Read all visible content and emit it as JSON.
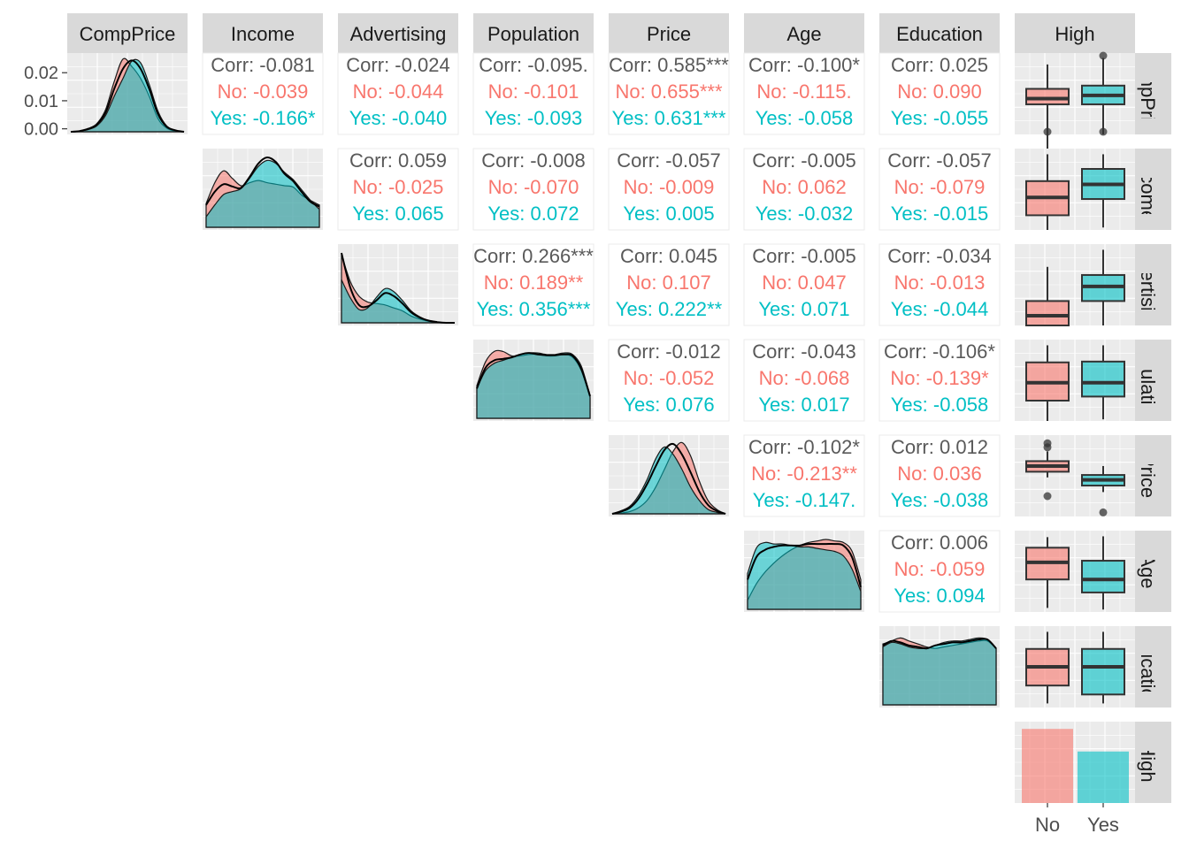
{
  "chart_data": {
    "type": "pairs",
    "variables": [
      "CompPrice",
      "Income",
      "Advertising",
      "Population",
      "Price",
      "Age",
      "Education",
      "High"
    ],
    "group_variable": "High",
    "groups": [
      "No",
      "Yes"
    ],
    "colors": {
      "No": "#F8766D",
      "Yes": "#00BFC4",
      "overall": "#555555",
      "panel_bg": "#EBEBEB",
      "strip_bg": "#D9D9D9"
    },
    "grid": true,
    "diag_y_axis": {
      "variable": "CompPrice",
      "ticks": [
        "0.00",
        "0.01",
        "0.02"
      ],
      "tick_values": [
        0,
        0.01,
        0.02
      ],
      "ylim": [
        -0.002,
        0.027
      ]
    },
    "correlations": [
      {
        "row": "CompPrice",
        "col": "Income",
        "corr": "Corr: -0.081",
        "no": "No: -0.039",
        "yes": "Yes: -0.166*"
      },
      {
        "row": "CompPrice",
        "col": "Advertising",
        "corr": "Corr: -0.024",
        "no": "No: -0.044",
        "yes": "Yes: -0.040"
      },
      {
        "row": "CompPrice",
        "col": "Population",
        "corr": "Corr: -0.095.",
        "no": "No: -0.101",
        "yes": "Yes: -0.093"
      },
      {
        "row": "CompPrice",
        "col": "Price",
        "corr": "Corr: 0.585***",
        "no": "No: 0.655***",
        "yes": "Yes: 0.631***"
      },
      {
        "row": "CompPrice",
        "col": "Age",
        "corr": "Corr: -0.100*",
        "no": "No: -0.115.",
        "yes": "Yes: -0.058"
      },
      {
        "row": "CompPrice",
        "col": "Education",
        "corr": "Corr: 0.025",
        "no": "No: 0.090",
        "yes": "Yes: -0.055"
      },
      {
        "row": "Income",
        "col": "Advertising",
        "corr": "Corr: 0.059",
        "no": "No: -0.025",
        "yes": "Yes: 0.065"
      },
      {
        "row": "Income",
        "col": "Population",
        "corr": "Corr: -0.008",
        "no": "No: -0.070",
        "yes": "Yes: 0.072"
      },
      {
        "row": "Income",
        "col": "Price",
        "corr": "Corr: -0.057",
        "no": "No: -0.009",
        "yes": "Yes: 0.005"
      },
      {
        "row": "Income",
        "col": "Age",
        "corr": "Corr: -0.005",
        "no": "No: 0.062",
        "yes": "Yes: -0.032"
      },
      {
        "row": "Income",
        "col": "Education",
        "corr": "Corr: -0.057",
        "no": "No: -0.079",
        "yes": "Yes: -0.015"
      },
      {
        "row": "Advertising",
        "col": "Population",
        "corr": "Corr: 0.266***",
        "no": "No: 0.189**",
        "yes": "Yes: 0.356***"
      },
      {
        "row": "Advertising",
        "col": "Price",
        "corr": "Corr: 0.045",
        "no": "No: 0.107",
        "yes": "Yes: 0.222**"
      },
      {
        "row": "Advertising",
        "col": "Age",
        "corr": "Corr: -0.005",
        "no": "No: 0.047",
        "yes": "Yes: 0.071"
      },
      {
        "row": "Advertising",
        "col": "Education",
        "corr": "Corr: -0.034",
        "no": "No: -0.013",
        "yes": "Yes: -0.044"
      },
      {
        "row": "Population",
        "col": "Price",
        "corr": "Corr: -0.012",
        "no": "No: -0.052",
        "yes": "Yes: 0.076"
      },
      {
        "row": "Population",
        "col": "Age",
        "corr": "Corr: -0.043",
        "no": "No: -0.068",
        "yes": "Yes: 0.017"
      },
      {
        "row": "Population",
        "col": "Education",
        "corr": "Corr: -0.106*",
        "no": "No: -0.139*",
        "yes": "Yes: -0.058"
      },
      {
        "row": "Price",
        "col": "Age",
        "corr": "Corr: -0.102*",
        "no": "No: -0.213**",
        "yes": "Yes: -0.147."
      },
      {
        "row": "Price",
        "col": "Education",
        "corr": "Corr: 0.012",
        "no": "No: 0.036",
        "yes": "Yes: -0.038"
      },
      {
        "row": "Age",
        "col": "Education",
        "corr": "Corr: 0.006",
        "no": "No: -0.059",
        "yes": "Yes: 0.094"
      }
    ],
    "densities": {
      "CompPrice": {
        "overall": [
          0,
          1,
          4,
          10,
          26,
          58,
          85,
          96,
          85,
          58,
          24,
          7,
          2,
          0
        ],
        "No": [
          0,
          1,
          4,
          11,
          30,
          68,
          98,
          88,
          72,
          48,
          18,
          5,
          1,
          0
        ],
        "Yes": [
          0,
          1,
          3,
          8,
          22,
          48,
          72,
          95,
          93,
          64,
          28,
          8,
          2,
          0
        ]
      },
      "Income": {
        "overall": [
          30,
          48,
          58,
          55,
          53,
          68,
          86,
          94,
          88,
          72,
          62,
          47,
          34,
          28
        ],
        "No": [
          32,
          60,
          76,
          66,
          56,
          60,
          63,
          60,
          58,
          56,
          54,
          43,
          36,
          30
        ],
        "Yes": [
          14,
          30,
          44,
          48,
          52,
          66,
          82,
          90,
          86,
          74,
          64,
          50,
          36,
          24
        ]
      },
      "Advertising": {
        "overall": [
          94,
          48,
          24,
          22,
          30,
          40,
          36,
          26,
          14,
          7,
          3,
          1,
          0,
          0
        ],
        "No": [
          92,
          56,
          36,
          28,
          26,
          24,
          20,
          16,
          9,
          5,
          2,
          1,
          0,
          0
        ],
        "Yes": [
          58,
          34,
          18,
          20,
          34,
          46,
          42,
          30,
          16,
          8,
          3,
          1,
          0,
          0
        ]
      },
      "Population": {
        "overall": [
          40,
          68,
          78,
          80,
          82,
          86,
          88,
          86,
          85,
          85,
          86,
          84,
          66,
          30
        ],
        "No": [
          44,
          76,
          90,
          90,
          84,
          84,
          86,
          86,
          84,
          84,
          86,
          82,
          64,
          28
        ],
        "Yes": [
          40,
          64,
          74,
          78,
          82,
          86,
          88,
          88,
          86,
          86,
          88,
          86,
          70,
          30
        ]
      },
      "Price": {
        "overall": [
          0,
          3,
          8,
          20,
          40,
          64,
          86,
          94,
          80,
          56,
          30,
          12,
          4,
          0
        ],
        "No": [
          0,
          1,
          3,
          8,
          18,
          36,
          60,
          84,
          96,
          78,
          44,
          18,
          6,
          0
        ],
        "Yes": [
          0,
          4,
          10,
          24,
          46,
          74,
          90,
          80,
          60,
          36,
          18,
          6,
          2,
          0
        ]
      },
      "Age": {
        "overall": [
          40,
          70,
          80,
          84,
          86,
          86,
          86,
          88,
          88,
          88,
          88,
          86,
          70,
          30
        ],
        "No": [
          12,
          34,
          50,
          62,
          72,
          80,
          86,
          90,
          92,
          94,
          92,
          90,
          78,
          40
        ],
        "Yes": [
          48,
          82,
          90,
          88,
          88,
          86,
          84,
          84,
          82,
          80,
          78,
          72,
          54,
          24
        ]
      },
      "Education": {
        "overall": [
          80,
          86,
          84,
          80,
          78,
          76,
          80,
          82,
          84,
          84,
          86,
          88,
          88,
          76
        ],
        "No": [
          82,
          86,
          90,
          86,
          82,
          78,
          76,
          78,
          80,
          82,
          84,
          86,
          86,
          76
        ],
        "Yes": [
          78,
          84,
          82,
          78,
          76,
          76,
          80,
          84,
          86,
          86,
          88,
          90,
          88,
          76
        ]
      }
    },
    "boxplots": {
      "CompPrice": {
        "No": {
          "min": -0.2,
          "q1": 0.37,
          "med": 0.44,
          "q3": 0.56,
          "max": 0.86,
          "outliers": [
            0.0
          ]
        },
        "Yes": {
          "min": 0.0,
          "q1": 0.37,
          "med": 0.48,
          "q3": 0.6,
          "max": 0.94,
          "outliers": [
            -0.05,
            0.97
          ]
        }
      },
      "Income": {
        "No": {
          "min": 0.0,
          "q1": 0.18,
          "med": 0.4,
          "q3": 0.6,
          "max": 0.93
        },
        "Yes": {
          "min": 0.03,
          "q1": 0.38,
          "med": 0.56,
          "q3": 0.75,
          "max": 0.93
        }
      },
      "Advertising": {
        "No": {
          "min": 0.0,
          "q1": 0.0,
          "med": 0.12,
          "q3": 0.3,
          "max": 0.72
        },
        "Yes": {
          "min": 0.0,
          "q1": 0.3,
          "med": 0.48,
          "q3": 0.62,
          "max": 0.93
        }
      },
      "Population": {
        "No": {
          "min": 0.0,
          "q1": 0.25,
          "med": 0.47,
          "q3": 0.72,
          "max": 0.93
        },
        "Yes": {
          "min": 0.02,
          "q1": 0.3,
          "med": 0.47,
          "q3": 0.73,
          "max": 0.93
        }
      },
      "Price": {
        "No": {
          "min": 0.48,
          "q1": 0.55,
          "med": 0.62,
          "q3": 0.68,
          "max": 0.8,
          "outliers": [
            0.25,
            0.85,
            0.9
          ]
        },
        "Yes": {
          "min": 0.3,
          "q1": 0.38,
          "med": 0.45,
          "q3": 0.51,
          "max": 0.62,
          "outliers": [
            0.05
          ]
        }
      },
      "Age": {
        "No": {
          "min": 0.05,
          "q1": 0.4,
          "med": 0.61,
          "q3": 0.79,
          "max": 0.92
        },
        "Yes": {
          "min": 0.03,
          "q1": 0.24,
          "med": 0.4,
          "q3": 0.63,
          "max": 0.93
        }
      },
      "Education": {
        "No": {
          "min": 0.05,
          "q1": 0.27,
          "med": 0.5,
          "q3": 0.72,
          "max": 0.93
        },
        "Yes": {
          "min": 0.05,
          "q1": 0.16,
          "med": 0.5,
          "q3": 0.72,
          "max": 0.93
        }
      }
    },
    "high_counts": {
      "categories": [
        "No",
        "Yes"
      ],
      "values": [
        236,
        164
      ]
    }
  }
}
